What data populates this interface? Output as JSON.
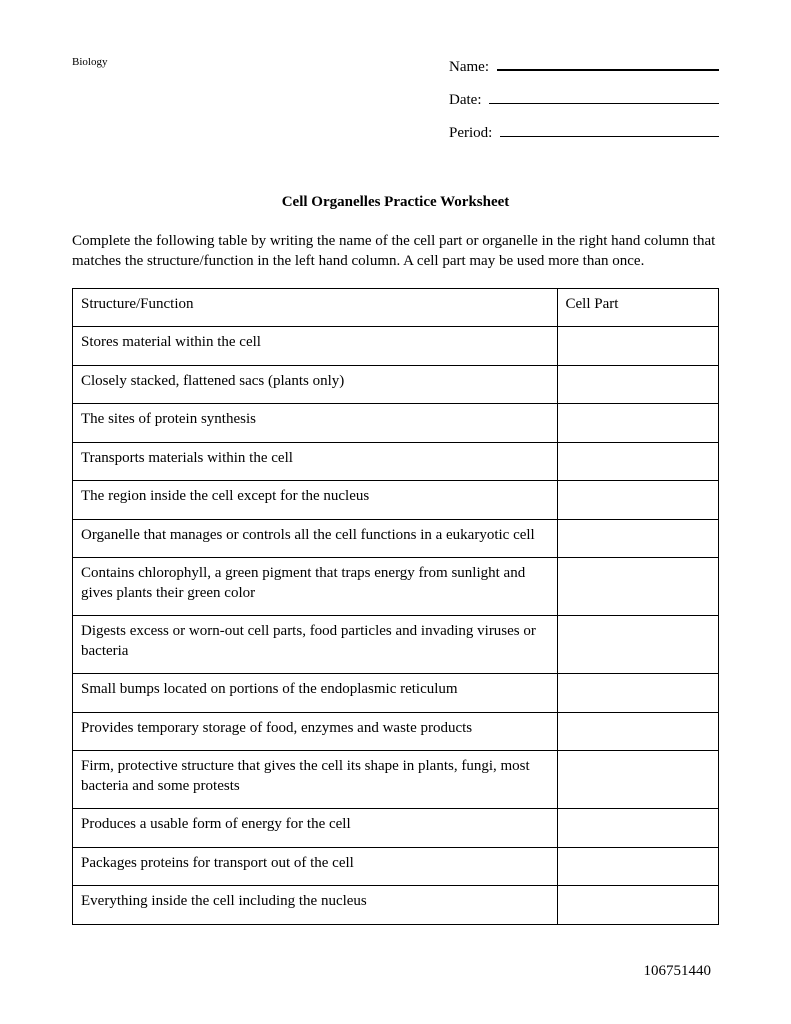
{
  "header": {
    "subject": "Biology",
    "fields": [
      {
        "label": "Name:"
      },
      {
        "label": "Date:"
      },
      {
        "label": "Period:"
      }
    ]
  },
  "title": "Cell Organelles Practice Worksheet",
  "instructions": "Complete the following table by writing the name of the cell part or organelle in the right hand column that matches the structure/function in the left hand column. A cell part may be used more than once.",
  "table": {
    "columns": [
      "Structure/Function",
      "Cell Part"
    ],
    "rows": [
      [
        "Stores material within the cell",
        ""
      ],
      [
        "Closely stacked, flattened sacs (plants only)",
        ""
      ],
      [
        "The sites of protein synthesis",
        ""
      ],
      [
        "Transports materials within the cell",
        ""
      ],
      [
        "The region inside the cell except for the nucleus",
        ""
      ],
      [
        "Organelle that manages or controls all the cell functions in a eukaryotic cell",
        ""
      ],
      [
        "Contains chlorophyll, a green pigment that traps energy from sunlight and gives plants their green color",
        ""
      ],
      [
        "Digests excess or worn-out cell parts, food particles and invading viruses or bacteria",
        ""
      ],
      [
        "Small bumps located on portions of the endoplasmic reticulum",
        ""
      ],
      [
        "Provides temporary storage of food, enzymes and waste products",
        ""
      ],
      [
        "Firm, protective structure that gives the cell its shape in plants, fungi, most bacteria and some protests",
        ""
      ],
      [
        "Produces a usable form of energy for the cell",
        ""
      ],
      [
        "Packages proteins for transport out of the cell",
        ""
      ],
      [
        "Everything inside the cell including the nucleus",
        ""
      ]
    ]
  },
  "footer": "106751440",
  "style": {
    "background_color": "#ffffff",
    "text_color": "#000000",
    "border_color": "#000000",
    "font_family": "Times New Roman",
    "body_fontsize": 15,
    "subject_fontsize": 11,
    "title_fontsize": 15,
    "col_widths": [
      "75%",
      "25%"
    ]
  }
}
